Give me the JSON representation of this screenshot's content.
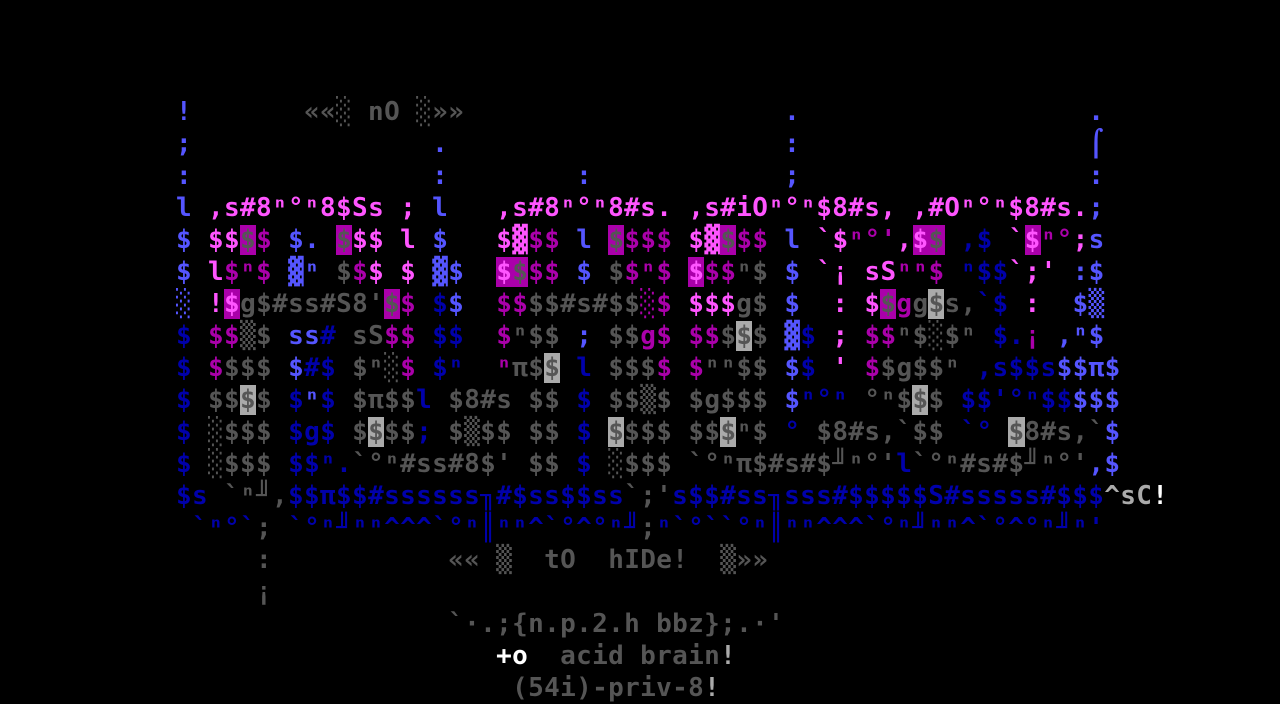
{
  "palette": {
    "B": "#5555ff",
    "b": "#0000aa",
    "M": "#ff55ff",
    "m": "#aa00aa",
    "g": "#555555",
    "G": "#aaaaaa",
    "W": "#ffffff"
  },
  "art_rows": [
    [
      [
        "!",
        "B"
      ],
      "       ",
      [
        "««░ nO ░»»",
        "g"
      ],
      "                    ",
      [
        ".",
        "B"
      ],
      "                  ",
      [
        ".",
        "B"
      ]
    ],
    [
      [
        ";",
        "B"
      ],
      "               ",
      [
        ".",
        "B"
      ],
      "                     ",
      [
        ":",
        "B"
      ],
      "                  ",
      [
        "⌠",
        "B"
      ]
    ],
    [
      [
        ":",
        "B"
      ],
      "               ",
      [
        ":",
        "B"
      ],
      "        ",
      [
        ":",
        "B"
      ],
      "            ",
      [
        ";",
        "B"
      ],
      "                  ",
      [
        ":",
        "B"
      ]
    ],
    [
      [
        "l",
        "B"
      ],
      " ",
      [
        ",s#8ⁿ°ⁿ8$Ss",
        "M"
      ],
      " ",
      [
        ";",
        "M"
      ],
      " ",
      [
        "l",
        "B"
      ],
      "   ",
      [
        ",s#8ⁿ°ⁿ8#s. ,s#iOⁿ°ⁿ$8#s, ,#Oⁿ°ⁿ$8#s.",
        "M"
      ],
      [
        ";",
        "B"
      ]
    ],
    [
      [
        "$",
        "B"
      ],
      " ",
      [
        "$$",
        "M"
      ],
      [
        "$",
        "g",
        "m"
      ],
      [
        "$",
        "m"
      ],
      " ",
      [
        "$.",
        "B"
      ],
      " ",
      [
        "$",
        "g",
        "m"
      ],
      [
        "$$",
        "M"
      ],
      " ",
      [
        "l",
        "M"
      ],
      " ",
      [
        "$",
        "B"
      ],
      "   ",
      [
        "$",
        "M"
      ],
      [
        "▓",
        "M"
      ],
      [
        "$$",
        "m"
      ],
      " ",
      [
        "l",
        "B"
      ],
      " ",
      [
        "$",
        "g",
        "m"
      ],
      [
        "$$$",
        "m"
      ],
      " ",
      [
        "$",
        "M"
      ],
      [
        "▓",
        "M"
      ],
      [
        "$",
        "g",
        "m"
      ],
      [
        "$$",
        "m"
      ],
      " ",
      [
        "l",
        "B"
      ],
      " ",
      [
        "`$",
        "M"
      ],
      [
        "ⁿ°'",
        "m"
      ],
      [
        ",",
        "M"
      ],
      [
        "$",
        "M",
        "m"
      ],
      [
        "$",
        "g",
        "m"
      ],
      " ",
      [
        ",$",
        "b"
      ],
      " ",
      [
        "`",
        "M"
      ],
      [
        "$",
        "M",
        "m"
      ],
      [
        "ⁿ°",
        "m"
      ],
      [
        ";",
        "M"
      ],
      [
        "s",
        "B"
      ]
    ],
    [
      [
        "$",
        "B"
      ],
      " ",
      [
        "l",
        "M"
      ],
      [
        "$ⁿ$",
        "m"
      ],
      " ",
      [
        "▓ⁿ",
        "B"
      ],
      " ",
      [
        "$",
        "g"
      ],
      [
        "$",
        "m"
      ],
      [
        "$",
        "M"
      ],
      " ",
      [
        "$",
        "M"
      ],
      " ",
      [
        "▓$",
        "B"
      ],
      "  ",
      [
        "$",
        "M",
        "m"
      ],
      [
        "$",
        "g",
        "m"
      ],
      [
        "$$",
        "m"
      ],
      " ",
      [
        "$",
        "B"
      ],
      " ",
      [
        "$",
        "g"
      ],
      [
        "$ⁿ$",
        "m"
      ],
      " ",
      [
        "$",
        "M",
        "m"
      ],
      [
        "$$",
        "m"
      ],
      [
        "ⁿ$",
        "g"
      ],
      " ",
      [
        "$",
        "B"
      ],
      " ",
      [
        "`¡",
        "M"
      ],
      " ",
      [
        "sS",
        "M"
      ],
      [
        "ⁿⁿ$",
        "m"
      ],
      " ",
      [
        "ⁿ$$",
        "b"
      ],
      [
        "`;'",
        "M"
      ],
      " ",
      [
        ":$",
        "B"
      ]
    ],
    [
      [
        "░",
        "B"
      ],
      " ",
      [
        "!",
        "M"
      ],
      [
        "$",
        "M",
        "m"
      ],
      [
        "g$#ss#S8'",
        "g"
      ],
      [
        "$",
        "g",
        "m"
      ],
      [
        "$",
        "m"
      ],
      " ",
      [
        "$",
        "b"
      ],
      [
        "$",
        "B"
      ],
      "  ",
      [
        "$$",
        "m"
      ],
      [
        "$$#s#$$",
        "g"
      ],
      [
        "░",
        "m"
      ],
      [
        "$",
        "m"
      ],
      " ",
      [
        "$$$",
        "M"
      ],
      [
        "g$",
        "g"
      ],
      " ",
      [
        "$",
        "B"
      ],
      "  ",
      [
        ":",
        "M"
      ],
      " ",
      [
        "$",
        "M"
      ],
      [
        "$",
        "g",
        "m"
      ],
      [
        "g",
        "m"
      ],
      [
        "g",
        "g"
      ],
      [
        "$",
        "g",
        "G"
      ],
      [
        "s,",
        "g"
      ],
      [
        "`$",
        "b"
      ],
      " ",
      [
        ":",
        "M"
      ],
      "  ",
      [
        "$▒",
        "B"
      ]
    ],
    [
      [
        "$",
        "b"
      ],
      " ",
      [
        "$$",
        "m"
      ],
      [
        "▒$",
        "g"
      ],
      " ",
      [
        "ss",
        "B"
      ],
      [
        "#",
        "b"
      ],
      " ",
      [
        "sS",
        "g"
      ],
      [
        "$$",
        "m"
      ],
      " ",
      [
        "$$",
        "b"
      ],
      "  ",
      [
        "$",
        "m"
      ],
      [
        "ⁿ$$",
        "g"
      ],
      " ",
      [
        ";",
        "B"
      ],
      " ",
      [
        "$$",
        "g"
      ],
      [
        "g$",
        "m"
      ],
      " ",
      [
        "$$",
        "m"
      ],
      [
        "$",
        "g"
      ],
      [
        "$",
        "g",
        "G"
      ],
      [
        "$",
        "g"
      ],
      " ",
      [
        "▓",
        "B"
      ],
      [
        "$",
        "b"
      ],
      " ",
      [
        ";",
        "M"
      ],
      " ",
      [
        "$$",
        "m"
      ],
      [
        "ⁿ$░$ⁿ",
        "g"
      ],
      " ",
      [
        "$.",
        "b"
      ],
      [
        "¡",
        "m"
      ],
      " ",
      [
        ",ⁿ$",
        "B"
      ]
    ],
    [
      [
        "$",
        "b"
      ],
      " ",
      [
        "$",
        "m"
      ],
      [
        "$$$",
        "g"
      ],
      " ",
      [
        "$",
        "B"
      ],
      [
        "#$",
        "b"
      ],
      " ",
      [
        "$ⁿ░",
        "g"
      ],
      [
        "$",
        "m"
      ],
      " ",
      [
        "$ⁿ",
        "b"
      ],
      "  ",
      [
        "ⁿ",
        "m"
      ],
      [
        "π$",
        "g"
      ],
      [
        "$",
        "g",
        "G"
      ],
      " ",
      [
        "l",
        "b"
      ],
      " ",
      [
        "$$$",
        "g"
      ],
      [
        "$",
        "m"
      ],
      " ",
      [
        "$",
        "m"
      ],
      [
        "ⁿⁿ$$",
        "g"
      ],
      " ",
      [
        "$",
        "B"
      ],
      [
        "$",
        "b"
      ],
      " ",
      [
        "'",
        "M"
      ],
      " ",
      [
        "$",
        "m"
      ],
      [
        "$g$$ⁿ",
        "g"
      ],
      " ",
      [
        ",s$$s",
        "b"
      ],
      [
        "$$π$",
        "B"
      ]
    ],
    [
      [
        "$",
        "b"
      ],
      " ",
      [
        "$$",
        "g"
      ],
      [
        "$",
        "g",
        "G"
      ],
      [
        "$",
        "g"
      ],
      " ",
      [
        "$",
        "b"
      ],
      [
        "ⁿ",
        "B"
      ],
      [
        "$",
        "b"
      ],
      " ",
      [
        "$π$$",
        "g"
      ],
      [
        "l",
        "b"
      ],
      " ",
      [
        "$8#s",
        "g"
      ],
      " ",
      [
        "$$",
        "g"
      ],
      " ",
      [
        "$",
        "b"
      ],
      " ",
      [
        "$$▒$",
        "g"
      ],
      " ",
      [
        "$g$$$",
        "g"
      ],
      " ",
      [
        "$",
        "B"
      ],
      [
        "ⁿ°ⁿ",
        "b"
      ],
      " ",
      [
        "°ⁿ$",
        "g"
      ],
      [
        "$",
        "g",
        "G"
      ],
      [
        "$",
        "g"
      ],
      " ",
      [
        "$$'°ⁿ$$",
        "b"
      ],
      [
        "$$$",
        "B"
      ]
    ],
    [
      [
        "$",
        "b"
      ],
      " ",
      [
        "░$$$",
        "g"
      ],
      " ",
      [
        "$g$",
        "b"
      ],
      " ",
      [
        "$",
        "g"
      ],
      [
        "$",
        "g",
        "G"
      ],
      [
        "$$",
        "g"
      ],
      [
        ";",
        "b"
      ],
      " ",
      [
        "$▒$$",
        "g"
      ],
      " ",
      [
        "$$",
        "g"
      ],
      " ",
      [
        "$",
        "b"
      ],
      " ",
      [
        "$",
        "g",
        "G"
      ],
      [
        "$$$",
        "g"
      ],
      " ",
      [
        "$$",
        "g"
      ],
      [
        "$",
        "g",
        "G"
      ],
      [
        "ⁿ$",
        "g"
      ],
      " ",
      [
        "°",
        "b"
      ],
      " ",
      [
        "$8#s,`$$",
        "g"
      ],
      " ",
      [
        "`°",
        "b"
      ],
      " ",
      [
        "$",
        "g",
        "G"
      ],
      [
        "8#s,`",
        "g"
      ],
      [
        "$",
        "B"
      ]
    ],
    [
      [
        "$",
        "b"
      ],
      " ",
      [
        "░$$$",
        "g"
      ],
      " ",
      [
        "$$ⁿ.",
        "b"
      ],
      [
        "`°ⁿ#ss#8$'",
        "g"
      ],
      " ",
      [
        "$$",
        "g"
      ],
      " ",
      [
        "$",
        "b"
      ],
      " ",
      [
        "░$$$",
        "g"
      ],
      " ",
      [
        "`°ⁿπ$#s#$╜ⁿ°'",
        "g"
      ],
      [
        "l",
        "b"
      ],
      [
        "`°ⁿ#s#$╜ⁿ°'",
        "g"
      ],
      [
        ",$",
        "B"
      ]
    ],
    [
      [
        "$s",
        "b"
      ],
      " ",
      [
        "`ⁿ╜,",
        "g"
      ],
      [
        "$$π$$#ssssss╖#$ss$$ss",
        "b"
      ],
      [
        "`;'",
        "g"
      ],
      [
        "s$$#ss╖sss#$$$$$S#sssss#$$$",
        "b"
      ],
      [
        "^sC",
        "G"
      ],
      [
        "!",
        "W"
      ]
    ],
    [
      " ",
      [
        "`ⁿ°`",
        "b"
      ],
      [
        ";",
        "g"
      ],
      " ",
      [
        "`°ⁿ╜ⁿⁿ^^^`°ⁿ║ⁿⁿ^`°^°ⁿ╜",
        "b"
      ],
      [
        ";",
        "g"
      ],
      [
        "ⁿ`°``°ⁿ║ⁿⁿ^^^`°ⁿ╜ⁿⁿ^`°^°ⁿ╜ⁿ'",
        "b"
      ]
    ],
    [
      "     ",
      [
        ":",
        "g"
      ],
      "           ",
      [
        "««",
        "g"
      ],
      " ",
      [
        "▒",
        "g"
      ],
      "  ",
      [
        "tO",
        "g"
      ],
      "  ",
      [
        "hIDe!",
        "g"
      ],
      "  ",
      [
        "▒»»",
        "g"
      ]
    ],
    [
      "     ",
      [
        "¡",
        "g"
      ]
    ],
    [
      "                 ",
      [
        "`·.;{n.p.2.h bbz};.·'",
        "g"
      ]
    ],
    [
      "                    ",
      [
        "+o",
        "W"
      ],
      "  ",
      [
        "acid brain",
        "g"
      ],
      [
        "!",
        "G"
      ]
    ],
    [
      "                     ",
      [
        "(54i)-priv-8",
        "g"
      ],
      [
        "!",
        "G"
      ]
    ]
  ]
}
